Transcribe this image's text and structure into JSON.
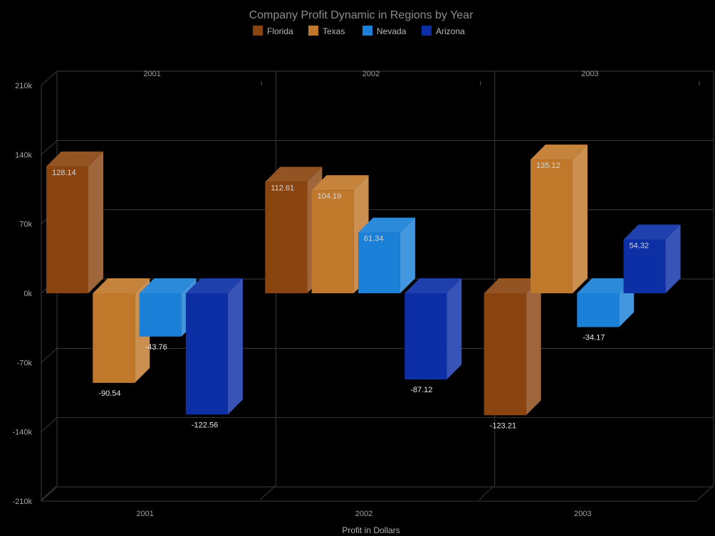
{
  "chart_data": {
    "type": "bar",
    "title": "Company Profit Dynamic in Regions by Year",
    "xlabel": "Profit in Dollars",
    "ylabel": "",
    "categories": [
      "2001",
      "2002",
      "2003"
    ],
    "ylim": [
      -210,
      210
    ],
    "yticks": [
      {
        "value": 210,
        "label": "210k"
      },
      {
        "value": 140,
        "label": "140k"
      },
      {
        "value": 70,
        "label": "70k"
      },
      {
        "value": 0,
        "label": "0k"
      },
      {
        "value": -70,
        "label": "-70k"
      },
      {
        "value": -140,
        "label": "-140k"
      },
      {
        "value": -210,
        "label": "-210k"
      }
    ],
    "grid": true,
    "legend_position": "top-center",
    "series": [
      {
        "name": "Florida",
        "color": "#8a4410",
        "values": [
          128.14,
          112.61,
          -123.21
        ],
        "labels": [
          "128.14",
          "112.61",
          "-123.21"
        ]
      },
      {
        "name": "Texas",
        "color": "#c0782a",
        "values": [
          -90.54,
          104.19,
          135.12
        ],
        "labels": [
          "-90.54",
          "104.19",
          "135.12"
        ]
      },
      {
        "name": "Nevada",
        "color": "#1a80d8",
        "values": [
          -43.76,
          61.34,
          -34.17
        ],
        "labels": [
          "-43.76",
          "61.34",
          "-34.17"
        ]
      },
      {
        "name": "Arizona",
        "color": "#0c2fa6",
        "values": [
          -122.56,
          -87.12,
          54.32
        ],
        "labels": [
          "-122.56",
          "-87.12",
          "54.32"
        ]
      }
    ]
  }
}
